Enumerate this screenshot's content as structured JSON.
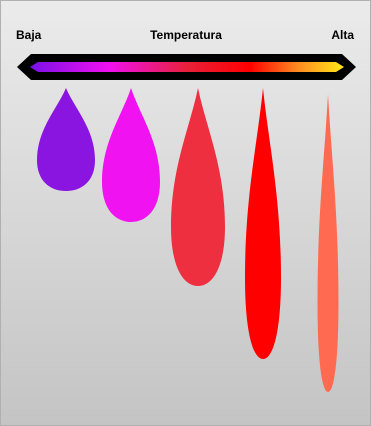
{
  "scale": {
    "low_label": "Baja",
    "title": "Temperatura",
    "high_label": "Alta"
  }
}
